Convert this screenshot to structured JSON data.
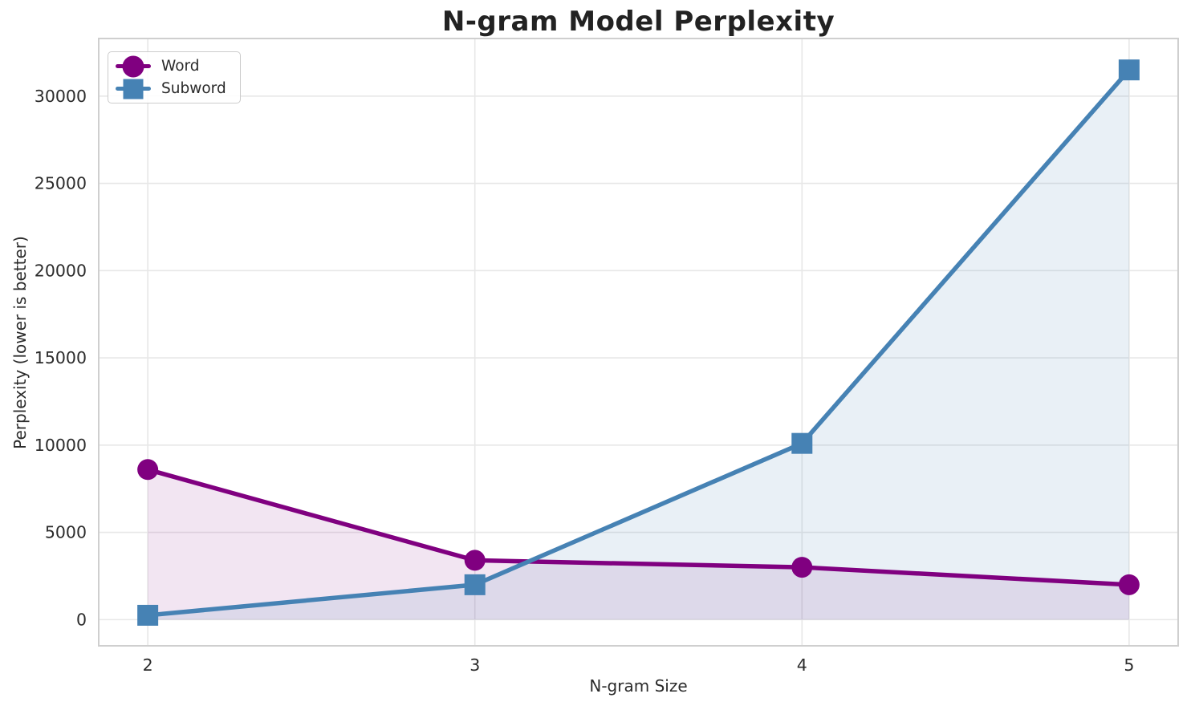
{
  "chart_data": {
    "type": "line",
    "title": "N-gram Model Perplexity",
    "xlabel": "N-gram Size",
    "ylabel": "Perplexity (lower is better)",
    "x": [
      2,
      3,
      4,
      5
    ],
    "xticks": [
      2,
      3,
      4,
      5
    ],
    "yticks": [
      0,
      5000,
      10000,
      15000,
      20000,
      25000,
      30000
    ],
    "xlim": [
      1.85,
      5.15
    ],
    "ylim": [
      -1500,
      33300
    ],
    "grid": true,
    "legend_position": "upper-left",
    "area_fill_to": 0,
    "series": [
      {
        "name": "Word",
        "color": "#800080",
        "marker": "circle",
        "fill_opacity": 0.1,
        "values": [
          8600,
          3400,
          3000,
          2000
        ]
      },
      {
        "name": "Subword",
        "color": "#4682B4",
        "marker": "square",
        "fill_opacity": 0.12,
        "values": [
          250,
          2000,
          10100,
          31500
        ]
      }
    ],
    "style": {
      "grid_color": "#e7e7e7",
      "frame_color": "#cfcfcf",
      "tick_color": "#2b2b2b",
      "line_width": 5.5,
      "marker_size": 26
    }
  }
}
